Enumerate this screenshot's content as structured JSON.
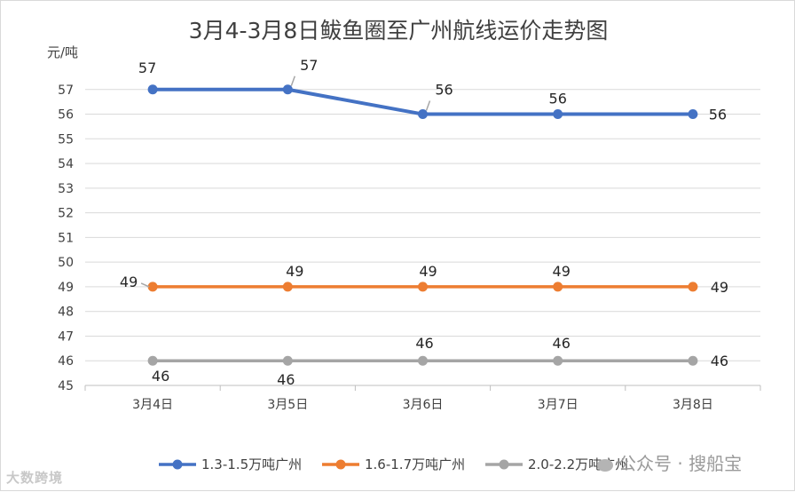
{
  "chart_data": {
    "type": "line",
    "title": "3月4-3月8日鲅鱼圈至广州航线运价走势图",
    "ylabel": "元/吨",
    "xlabel": "",
    "categories": [
      "3月4日",
      "3月5日",
      "3月6日",
      "3月7日",
      "3月8日"
    ],
    "ylim": [
      45,
      58
    ],
    "yticks": [
      45,
      46,
      47,
      48,
      49,
      50,
      51,
      52,
      53,
      54,
      55,
      56,
      57
    ],
    "grid": true,
    "legend": "bottom",
    "series": [
      {
        "name": "1.3-1.5万吨广州",
        "values": [
          57,
          57,
          56,
          56,
          56
        ],
        "color": "#4472c4"
      },
      {
        "name": "1.6-1.7万吨广州",
        "values": [
          49,
          49,
          49,
          49,
          49
        ],
        "color": "#ed7d31"
      },
      {
        "name": "2.0-2.2万吨广州",
        "values": [
          46,
          46,
          46,
          46,
          46
        ],
        "color": "#a5a5a5"
      }
    ]
  },
  "watermarks": {
    "left": "大数跨境",
    "right": "公众号 · 搜船宝"
  }
}
